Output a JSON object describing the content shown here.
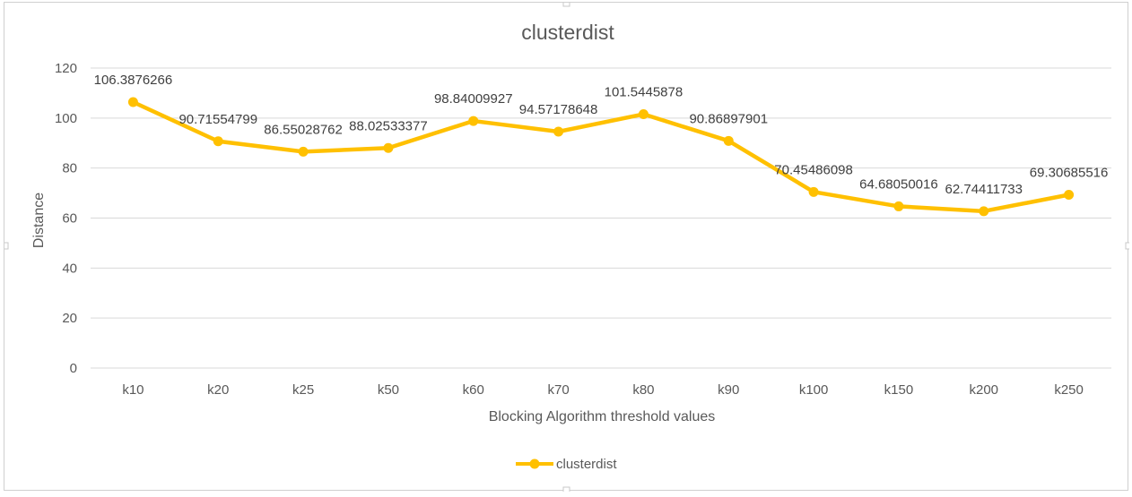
{
  "chart_data": {
    "type": "line",
    "title": "clusterdist",
    "xlabel": "Blocking Algorithm threshold values",
    "ylabel": "Distance",
    "categories": [
      "k10",
      "k20",
      "k25",
      "k50",
      "k60",
      "k70",
      "k80",
      "k90",
      "k100",
      "k150",
      "k200",
      "k250"
    ],
    "series": [
      {
        "name": "clusterdist",
        "values": [
          106.3876266,
          90.71554799,
          86.55028762,
          88.02533377,
          98.84009927,
          94.57178648,
          101.5445878,
          90.86897901,
          70.45486098,
          64.68050016,
          62.74411733,
          69.30685516
        ],
        "labels": [
          "106.3876266",
          "90.71554799",
          "86.55028762",
          "88.02533377",
          "98.84009927",
          "94.57178648",
          "101.5445878",
          "90.86897901",
          "70.45486098",
          "64.68050016",
          "62.74411733",
          "69.30685516"
        ],
        "color": "#FFC000"
      }
    ],
    "ylim": [
      0,
      120
    ],
    "yticks": [
      0,
      20,
      40,
      60,
      80,
      100,
      120
    ],
    "grid": true,
    "legend_position": "bottom"
  }
}
